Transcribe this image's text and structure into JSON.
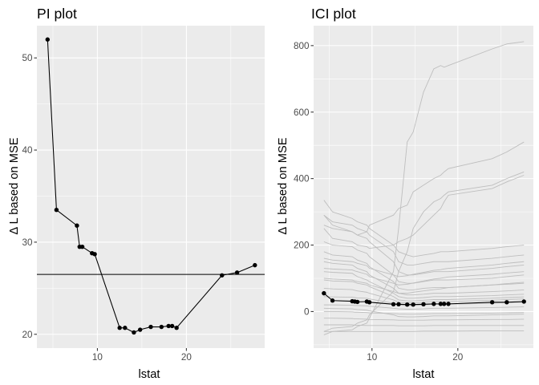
{
  "chart_data": [
    {
      "type": "line",
      "title": "PI plot",
      "xlabel": "lstat",
      "ylabel": "Δ L based on MSE",
      "xlim": [
        3.2,
        28.8
      ],
      "ylim": [
        18.5,
        53.5
      ],
      "xticks": [
        10,
        20
      ],
      "yticks": [
        20,
        30,
        40,
        50
      ],
      "grid": true,
      "hline": 26.5,
      "series": [
        {
          "x": [
            4.4,
            5.4,
            7.7,
            8.0,
            8.3,
            9.4,
            9.7,
            12.5,
            13.1,
            14.1,
            14.8,
            16.0,
            17.2,
            18.0,
            18.4,
            18.9,
            24.0,
            25.7,
            27.7
          ],
          "values": [
            52.0,
            33.5,
            31.8,
            29.5,
            29.5,
            28.8,
            28.7,
            20.7,
            20.7,
            20.2,
            20.5,
            20.8,
            20.8,
            20.9,
            20.9,
            20.7,
            26.4,
            26.7,
            27.5
          ]
        }
      ]
    },
    {
      "type": "line",
      "title": "ICI plot",
      "xlabel": "lstat",
      "ylabel": "Δ L based on MSE",
      "xlim": [
        3.2,
        28.8
      ],
      "ylim": [
        -110,
        860
      ],
      "xticks": [
        10,
        20
      ],
      "yticks": [
        0,
        200,
        400,
        600,
        800
      ],
      "grid": true,
      "x": [
        4.4,
        5.4,
        7.7,
        8.0,
        8.3,
        9.4,
        9.7,
        12.5,
        13.1,
        14.1,
        14.8,
        16.0,
        17.2,
        18.0,
        18.4,
        18.9,
        24.0,
        25.7,
        27.7
      ],
      "series": [
        {
          "values": [
            55,
            33,
            31,
            30,
            29,
            30,
            28,
            22,
            22,
            21,
            21,
            22,
            23,
            23,
            23,
            23,
            28,
            28,
            30
          ]
        },
        {
          "values": [
            -70,
            -60,
            -55,
            -50,
            -45,
            -35,
            -20,
            120,
            250,
            510,
            540,
            660,
            730,
            740,
            735,
            740,
            790,
            805,
            812
          ]
        },
        {
          "values": [
            290,
            260,
            240,
            235,
            230,
            240,
            260,
            290,
            310,
            320,
            360,
            380,
            400,
            410,
            420,
            430,
            460,
            480,
            510
          ]
        },
        {
          "values": [
            -60,
            -50,
            -45,
            -40,
            -35,
            -25,
            -10,
            60,
            120,
            180,
            250,
            300,
            330,
            340,
            350,
            360,
            380,
            400,
            420
          ]
        },
        {
          "values": [
            250,
            220,
            210,
            205,
            200,
            195,
            190,
            200,
            210,
            220,
            230,
            260,
            290,
            310,
            330,
            350,
            370,
            390,
            410
          ]
        },
        {
          "values": [
            335,
            300,
            280,
            275,
            270,
            260,
            250,
            200,
            180,
            170,
            165,
            170,
            175,
            180,
            180,
            180,
            190,
            195,
            200
          ]
        },
        {
          "values": [
            290,
            270,
            260,
            255,
            250,
            240,
            230,
            180,
            150,
            140,
            140,
            145,
            150,
            150,
            150,
            150,
            160,
            165,
            170
          ]
        },
        {
          "values": [
            260,
            250,
            240,
            235,
            230,
            220,
            210,
            150,
            120,
            110,
            110,
            115,
            120,
            120,
            120,
            120,
            130,
            135,
            140
          ]
        },
        {
          "values": [
            210,
            200,
            195,
            190,
            185,
            175,
            165,
            110,
            90,
            85,
            85,
            90,
            95,
            95,
            95,
            95,
            100,
            105,
            110
          ]
        },
        {
          "values": [
            180,
            170,
            165,
            160,
            155,
            145,
            135,
            90,
            70,
            65,
            65,
            70,
            72,
            72,
            72,
            72,
            80,
            82,
            85
          ]
        },
        {
          "values": [
            150,
            145,
            140,
            135,
            130,
            120,
            110,
            70,
            55,
            50,
            50,
            52,
            55,
            55,
            55,
            55,
            60,
            62,
            65
          ]
        },
        {
          "values": [
            120,
            118,
            115,
            110,
            105,
            95,
            90,
            55,
            45,
            40,
            40,
            42,
            45,
            45,
            45,
            45,
            48,
            50,
            52
          ]
        },
        {
          "values": [
            95,
            92,
            90,
            88,
            85,
            80,
            75,
            45,
            35,
            32,
            32,
            34,
            36,
            36,
            36,
            36,
            40,
            42,
            44
          ]
        },
        {
          "values": [
            70,
            68,
            66,
            64,
            62,
            58,
            55,
            35,
            28,
            26,
            26,
            28,
            30,
            30,
            30,
            30,
            34,
            36,
            38
          ]
        },
        {
          "values": [
            45,
            44,
            43,
            42,
            41,
            40,
            38,
            25,
            20,
            18,
            18,
            20,
            22,
            22,
            22,
            22,
            25,
            27,
            28
          ]
        },
        {
          "values": [
            20,
            20,
            19,
            18,
            18,
            17,
            16,
            10,
            8,
            7,
            7,
            8,
            10,
            10,
            10,
            10,
            12,
            13,
            14
          ]
        },
        {
          "values": [
            0,
            0,
            -1,
            -2,
            -2,
            -3,
            -4,
            -6,
            -7,
            -8,
            -8,
            -7,
            -6,
            -6,
            -6,
            -6,
            -5,
            -4,
            -3
          ]
        },
        {
          "values": [
            -20,
            -20,
            -21,
            -22,
            -22,
            -23,
            -24,
            -25,
            -26,
            -26,
            -26,
            -26,
            -25,
            -25,
            -25,
            -25,
            -24,
            -24,
            -23
          ]
        },
        {
          "values": [
            -40,
            -40,
            -40,
            -41,
            -41,
            -42,
            -42,
            -42,
            -43,
            -43,
            -43,
            -43,
            -42,
            -42,
            -42,
            -42,
            -42,
            -42,
            -42
          ]
        },
        {
          "values": [
            -60,
            -60,
            -60,
            -60,
            -60,
            -60,
            -60,
            -60,
            -60,
            -60,
            -60,
            -59,
            -59,
            -59,
            -59,
            -59,
            -58,
            -58,
            -58
          ]
        },
        {
          "values": [
            100,
            98,
            95,
            92,
            90,
            85,
            80,
            60,
            55,
            55,
            58,
            62,
            66,
            68,
            70,
            72,
            80,
            84,
            88
          ]
        },
        {
          "values": [
            130,
            128,
            125,
            122,
            120,
            112,
            105,
            85,
            80,
            82,
            86,
            92,
            98,
            100,
            102,
            104,
            112,
            116,
            120
          ]
        },
        {
          "values": [
            160,
            155,
            150,
            148,
            145,
            138,
            130,
            110,
            105,
            108,
            112,
            118,
            124,
            126,
            128,
            130,
            140,
            145,
            150
          ]
        },
        {
          "values": [
            10,
            9,
            8,
            7,
            6,
            4,
            2,
            -10,
            -15,
            -16,
            -16,
            -15,
            -13,
            -13,
            -13,
            -13,
            -10,
            -9,
            -8
          ]
        }
      ],
      "mean_series_index": 0
    }
  ]
}
